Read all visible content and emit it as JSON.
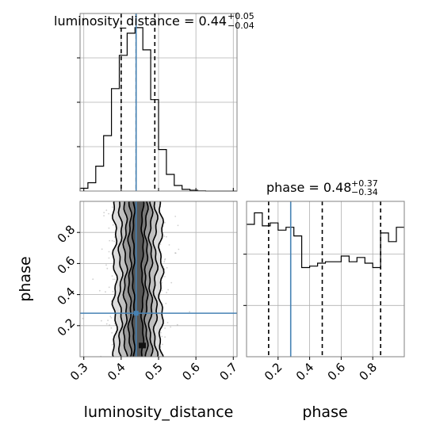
{
  "chart_data": {
    "type": "corner",
    "colors": {
      "line": "#000000",
      "truth": "#4682b4",
      "grid": "#b0b0b0",
      "frame": "#808080",
      "points": "#9a9a9a"
    },
    "parameters": [
      {
        "name": "luminosity_distance",
        "label": "luminosity_distance",
        "range": [
          0.29,
          0.71
        ],
        "ticks": [
          0.3,
          0.4,
          0.5,
          0.6,
          0.7
        ],
        "tick_labels": [
          "0.3",
          "0.4",
          "0.5",
          "0.6",
          "0.7"
        ],
        "truth": 0.44,
        "quantiles": [
          0.4,
          0.44,
          0.49
        ],
        "title_main": "luminosity_distance = 0.44",
        "title_sup": "+0.05",
        "title_sub": "−0.04",
        "hist_bin_edges": [
          0.29,
          0.311,
          0.332,
          0.353,
          0.374,
          0.395,
          0.416,
          0.437,
          0.458,
          0.479,
          0.5,
          0.521,
          0.542,
          0.563,
          0.584,
          0.605,
          0.626,
          0.647,
          0.668,
          0.689,
          0.71
        ],
        "hist_values": [
          1,
          3,
          9,
          20,
          37,
          49,
          57,
          59,
          51,
          33,
          15,
          6,
          2,
          0.6,
          0.3,
          0.1,
          0,
          0,
          0,
          0
        ]
      },
      {
        "name": "phase",
        "label": "phase",
        "range": [
          0.0,
          1.0
        ],
        "ticks": [
          0.2,
          0.4,
          0.6,
          0.8
        ],
        "tick_labels": [
          "0.2",
          "0.4",
          "0.6",
          "0.8"
        ],
        "truth": 0.28,
        "quantiles": [
          0.14,
          0.48,
          0.85
        ],
        "title_main": "phase = 0.48",
        "title_sup": "+0.37",
        "title_sub": "−0.34",
        "hist_bin_edges": [
          0.0,
          0.05,
          0.1,
          0.15,
          0.2,
          0.25,
          0.3,
          0.35,
          0.4,
          0.45,
          0.5,
          0.55,
          0.6,
          0.65,
          0.7,
          0.75,
          0.8,
          0.85,
          0.9,
          0.95,
          1.0
        ],
        "hist_values": [
          0.92,
          1.0,
          0.91,
          0.93,
          0.88,
          0.9,
          0.84,
          0.62,
          0.63,
          0.65,
          0.66,
          0.66,
          0.7,
          0.66,
          0.69,
          0.65,
          0.62,
          0.86,
          0.8,
          0.9
        ]
      }
    ],
    "contour_levels": [
      0.39,
      0.86,
      1.18,
      1.5,
      2.0,
      2.4
    ],
    "grid": true
  }
}
